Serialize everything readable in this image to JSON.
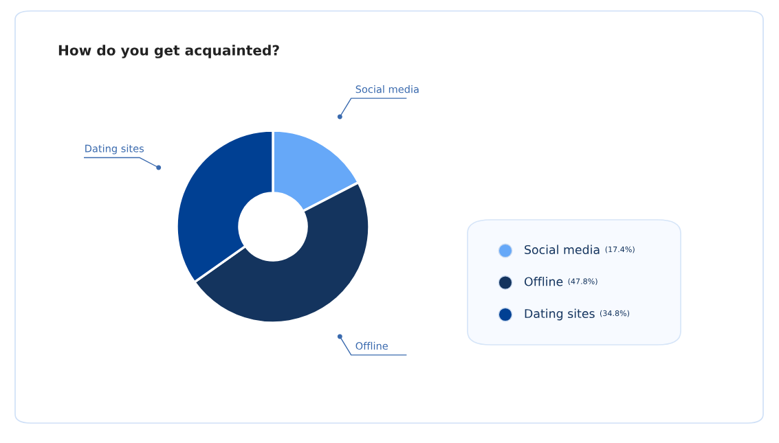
{
  "chart_data": {
    "type": "donut",
    "title": "How do you get acquainted?",
    "categories": [
      "Social media",
      "Offline",
      "Dating sites"
    ],
    "values": [
      17.4,
      47.8,
      34.8
    ],
    "colors": [
      "#66a8f8",
      "#14345e",
      "#004093"
    ],
    "value_labels": [
      "(17.4%)",
      "(47.8%)",
      "(34.8%)"
    ],
    "legend": "right"
  }
}
